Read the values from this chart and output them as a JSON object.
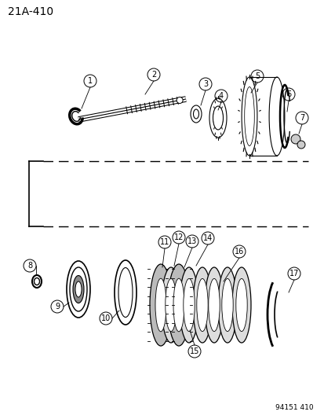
{
  "title": "21A-410",
  "footer": "94151 410",
  "bg_color": "#ffffff",
  "title_fontsize": 10,
  "footer_fontsize": 6.5
}
